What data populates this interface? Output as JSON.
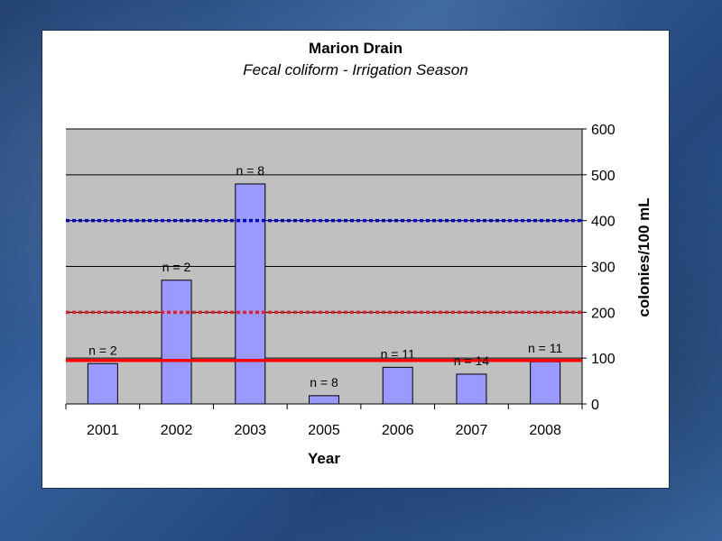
{
  "chart_data": {
    "type": "bar",
    "title": "Marion Drain",
    "subtitle": "Fecal coliform - Irrigation Season",
    "xlabel": "Year",
    "ylabel": "colonies/100 mL",
    "ylim": [
      0,
      600
    ],
    "yticks": [
      0,
      100,
      200,
      300,
      400,
      500,
      600
    ],
    "y_axis_side": "right",
    "grid": true,
    "categories": [
      "2001",
      "2002",
      "2003",
      "2005",
      "2006",
      "2007",
      "2008"
    ],
    "values": [
      88,
      270,
      480,
      18,
      80,
      65,
      92
    ],
    "sample_labels": [
      "n = 2",
      "n = 2",
      "n = 8",
      "n = 8",
      "n = 11",
      "n = 14",
      "n = 11"
    ],
    "reference_lines": [
      {
        "value": 400,
        "style": "dotted",
        "color": "#0000cc"
      },
      {
        "value": 200,
        "style": "dotted",
        "color": "#e0202a"
      },
      {
        "value": 95,
        "style": "solid",
        "color": "#ff0000"
      }
    ],
    "colors": {
      "bar_fill": "#9999ff",
      "plot_background": "#c0c0c0"
    }
  }
}
